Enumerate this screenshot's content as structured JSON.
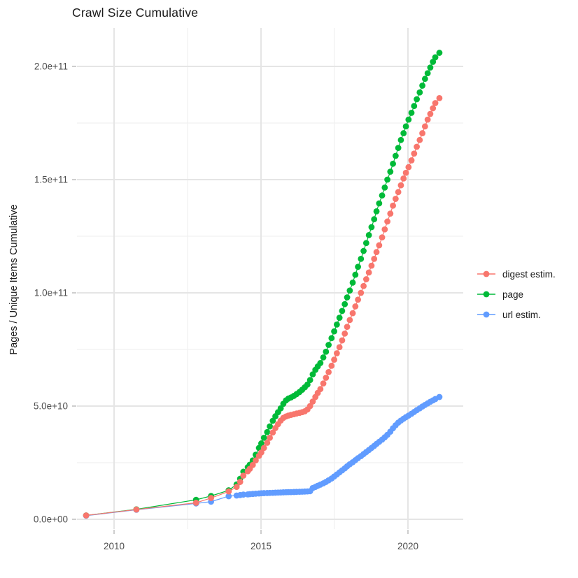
{
  "title": "Crawl Size Cumulative",
  "y_axis_title": "Pages / Unique Items Cumulative",
  "legend": {
    "items": [
      {
        "label": "digest estim.",
        "color": "#F8766D"
      },
      {
        "label": "page",
        "color": "#00BA38"
      },
      {
        "label": "url estim.",
        "color": "#619CFF"
      }
    ]
  },
  "chart_data": {
    "type": "scatter",
    "subtype": "points-with-connecting-lines",
    "title": "Crawl Size Cumulative",
    "xlabel": "",
    "ylabel": "Pages / Unique Items Cumulative",
    "unit": "pages (values in billions, 1e9)",
    "xlim": [
      2008.7,
      2021.9
    ],
    "ylim_e9": [
      -4,
      217
    ],
    "grid": "on",
    "legend_position": "right",
    "axes": {
      "x_major_ticks": [
        {
          "v": 2010,
          "label": "2010"
        },
        {
          "v": 2015,
          "label": "2015"
        },
        {
          "v": 2020,
          "label": "2020"
        }
      ],
      "x_minor_ticks": [
        2012.5,
        2017.5
      ],
      "y_major_ticks_e9": [
        {
          "v": 0,
          "label": "0.0e+00"
        },
        {
          "v": 50,
          "label": "5.0e+10"
        },
        {
          "v": 100,
          "label": "1.0e+11"
        },
        {
          "v": 150,
          "label": "1.5e+11"
        },
        {
          "v": 200,
          "label": "2.0e+11"
        }
      ],
      "y_minor_ticks_e9": [
        25,
        75,
        125,
        175
      ]
    },
    "draw_order": [
      1,
      2,
      0
    ],
    "series": [
      {
        "name": "digest estim.",
        "color": "#F8766D",
        "points": [
          [
            2009.05,
            1.7
          ],
          [
            2010.76,
            4.3
          ],
          [
            2012.79,
            7.3
          ],
          [
            2013.3,
            9.4
          ],
          [
            2013.9,
            12.3
          ],
          [
            2014.17,
            14.3
          ],
          [
            2014.29,
            16.5
          ],
          [
            2014.4,
            19.3
          ],
          [
            2014.55,
            21.2
          ],
          [
            2014.62,
            22.3
          ],
          [
            2014.72,
            24
          ],
          [
            2014.82,
            26
          ],
          [
            2014.93,
            28
          ],
          [
            2015.01,
            29.5
          ],
          [
            2015.1,
            31.5
          ],
          [
            2015.21,
            33.8
          ],
          [
            2015.3,
            36
          ],
          [
            2015.4,
            38.3
          ],
          [
            2015.49,
            40.3
          ],
          [
            2015.58,
            42
          ],
          [
            2015.67,
            43.6
          ],
          [
            2015.76,
            44.8
          ],
          [
            2015.85,
            45.4
          ],
          [
            2015.93,
            45.8
          ],
          [
            2016.02,
            46.1
          ],
          [
            2016.12,
            46.4
          ],
          [
            2016.21,
            46.7
          ],
          [
            2016.31,
            47
          ],
          [
            2016.4,
            47.3
          ],
          [
            2016.49,
            47.7
          ],
          [
            2016.58,
            48.5
          ],
          [
            2016.67,
            50
          ],
          [
            2016.76,
            52
          ],
          [
            2016.85,
            54
          ],
          [
            2016.93,
            55.8
          ],
          [
            2017.02,
            57.5
          ],
          [
            2017.12,
            60
          ],
          [
            2017.21,
            62.5
          ],
          [
            2017.3,
            65
          ],
          [
            2017.4,
            67.8
          ],
          [
            2017.49,
            70.5
          ],
          [
            2017.58,
            73.3
          ],
          [
            2017.67,
            76
          ],
          [
            2017.76,
            79
          ],
          [
            2017.85,
            82
          ],
          [
            2017.93,
            85
          ],
          [
            2018.02,
            88
          ],
          [
            2018.12,
            91
          ],
          [
            2018.21,
            94
          ],
          [
            2018.3,
            97
          ],
          [
            2018.4,
            100
          ],
          [
            2018.49,
            103
          ],
          [
            2018.58,
            106
          ],
          [
            2018.67,
            109
          ],
          [
            2018.76,
            112
          ],
          [
            2018.85,
            115
          ],
          [
            2018.93,
            118
          ],
          [
            2019.02,
            121
          ],
          [
            2019.12,
            124.5
          ],
          [
            2019.21,
            128
          ],
          [
            2019.3,
            131.5
          ],
          [
            2019.4,
            135
          ],
          [
            2019.49,
            138.5
          ],
          [
            2019.58,
            141.5
          ],
          [
            2019.67,
            144.5
          ],
          [
            2019.76,
            147.5
          ],
          [
            2019.85,
            150.5
          ],
          [
            2019.93,
            153
          ],
          [
            2020.02,
            155.5
          ],
          [
            2020.12,
            158.5
          ],
          [
            2020.21,
            161.5
          ],
          [
            2020.3,
            164.5
          ],
          [
            2020.4,
            167.5
          ],
          [
            2020.49,
            170.5
          ],
          [
            2020.58,
            173.5
          ],
          [
            2020.67,
            176.5
          ],
          [
            2020.76,
            179
          ],
          [
            2020.85,
            181.5
          ],
          [
            2020.93,
            183.8
          ],
          [
            2021.07,
            186
          ]
        ]
      },
      {
        "name": "page",
        "color": "#00BA38",
        "points": [
          [
            2009.05,
            1.7
          ],
          [
            2010.76,
            4.4
          ],
          [
            2012.79,
            8.6
          ],
          [
            2013.3,
            10.3
          ],
          [
            2013.9,
            12.8
          ],
          [
            2014.17,
            15.4
          ],
          [
            2014.29,
            17.9
          ],
          [
            2014.4,
            21
          ],
          [
            2014.55,
            23
          ],
          [
            2014.62,
            24.1
          ],
          [
            2014.72,
            26
          ],
          [
            2014.82,
            28.5
          ],
          [
            2014.93,
            31.5
          ],
          [
            2015.01,
            33.5
          ],
          [
            2015.1,
            36
          ],
          [
            2015.21,
            38.5
          ],
          [
            2015.3,
            41
          ],
          [
            2015.4,
            43.5
          ],
          [
            2015.49,
            45.5
          ],
          [
            2015.58,
            47.3
          ],
          [
            2015.67,
            49
          ],
          [
            2015.76,
            51
          ],
          [
            2015.85,
            52.5
          ],
          [
            2015.93,
            53.3
          ],
          [
            2016.02,
            53.8
          ],
          [
            2016.12,
            54.5
          ],
          [
            2016.21,
            55.3
          ],
          [
            2016.31,
            56.2
          ],
          [
            2016.4,
            57.2
          ],
          [
            2016.49,
            58.3
          ],
          [
            2016.58,
            59.5
          ],
          [
            2016.67,
            61.5
          ],
          [
            2016.76,
            64
          ],
          [
            2016.85,
            66
          ],
          [
            2016.93,
            67.5
          ],
          [
            2017.02,
            69
          ],
          [
            2017.12,
            71.5
          ],
          [
            2017.21,
            74
          ],
          [
            2017.3,
            77
          ],
          [
            2017.4,
            80
          ],
          [
            2017.49,
            83
          ],
          [
            2017.58,
            86
          ],
          [
            2017.67,
            89
          ],
          [
            2017.76,
            92
          ],
          [
            2017.85,
            95
          ],
          [
            2017.93,
            98
          ],
          [
            2018.02,
            101
          ],
          [
            2018.12,
            104.5
          ],
          [
            2018.21,
            108
          ],
          [
            2018.3,
            111.5
          ],
          [
            2018.4,
            115
          ],
          [
            2018.49,
            118.5
          ],
          [
            2018.58,
            122
          ],
          [
            2018.67,
            125.5
          ],
          [
            2018.76,
            129
          ],
          [
            2018.85,
            132.5
          ],
          [
            2018.93,
            136
          ],
          [
            2019.02,
            139.5
          ],
          [
            2019.12,
            143
          ],
          [
            2019.21,
            146.5
          ],
          [
            2019.3,
            150
          ],
          [
            2019.4,
            153.5
          ],
          [
            2019.49,
            157
          ],
          [
            2019.58,
            160.5
          ],
          [
            2019.67,
            164
          ],
          [
            2019.76,
            167.5
          ],
          [
            2019.85,
            170.5
          ],
          [
            2019.93,
            173.5
          ],
          [
            2020.02,
            176.5
          ],
          [
            2020.12,
            179.5
          ],
          [
            2020.21,
            182.5
          ],
          [
            2020.3,
            185.5
          ],
          [
            2020.4,
            188.5
          ],
          [
            2020.49,
            191.5
          ],
          [
            2020.58,
            194.5
          ],
          [
            2020.67,
            197
          ],
          [
            2020.76,
            199.5
          ],
          [
            2020.85,
            202
          ],
          [
            2020.93,
            204
          ],
          [
            2021.07,
            206
          ]
        ]
      },
      {
        "name": "url estim.",
        "color": "#619CFF",
        "points": [
          [
            2009.05,
            1.6
          ],
          [
            2010.76,
            4.2
          ],
          [
            2012.79,
            7
          ],
          [
            2013.3,
            7.8
          ],
          [
            2013.9,
            10.2
          ],
          [
            2014.17,
            10.5
          ],
          [
            2014.29,
            10.7
          ],
          [
            2014.4,
            10.9
          ],
          [
            2014.55,
            11
          ],
          [
            2014.62,
            11.1
          ],
          [
            2014.72,
            11.2
          ],
          [
            2014.82,
            11.3
          ],
          [
            2014.93,
            11.4
          ],
          [
            2015.01,
            11.5
          ],
          [
            2015.1,
            11.55
          ],
          [
            2015.21,
            11.6
          ],
          [
            2015.3,
            11.65
          ],
          [
            2015.4,
            11.7
          ],
          [
            2015.49,
            11.75
          ],
          [
            2015.58,
            11.8
          ],
          [
            2015.67,
            11.85
          ],
          [
            2015.76,
            11.9
          ],
          [
            2015.85,
            11.95
          ],
          [
            2015.93,
            12
          ],
          [
            2016.02,
            12
          ],
          [
            2016.12,
            12.05
          ],
          [
            2016.21,
            12.1
          ],
          [
            2016.31,
            12.15
          ],
          [
            2016.4,
            12.2
          ],
          [
            2016.49,
            12.25
          ],
          [
            2016.58,
            12.3
          ],
          [
            2016.67,
            12.4
          ],
          [
            2016.76,
            13.8
          ],
          [
            2016.85,
            14.3
          ],
          [
            2016.93,
            14.8
          ],
          [
            2017.02,
            15.3
          ],
          [
            2017.12,
            15.9
          ],
          [
            2017.21,
            16.5
          ],
          [
            2017.3,
            17.2
          ],
          [
            2017.4,
            18
          ],
          [
            2017.49,
            18.9
          ],
          [
            2017.58,
            19.8
          ],
          [
            2017.67,
            20.7
          ],
          [
            2017.76,
            21.6
          ],
          [
            2017.85,
            22.5
          ],
          [
            2017.93,
            23.4
          ],
          [
            2018.02,
            24.3
          ],
          [
            2018.12,
            25.2
          ],
          [
            2018.21,
            26.1
          ],
          [
            2018.3,
            27
          ],
          [
            2018.4,
            27.9
          ],
          [
            2018.49,
            28.8
          ],
          [
            2018.58,
            29.7
          ],
          [
            2018.67,
            30.6
          ],
          [
            2018.76,
            31.5
          ],
          [
            2018.85,
            32.4
          ],
          [
            2018.93,
            33.3
          ],
          [
            2019.02,
            34.2
          ],
          [
            2019.12,
            35.2
          ],
          [
            2019.21,
            36.2
          ],
          [
            2019.3,
            37.3
          ],
          [
            2019.4,
            38.7
          ],
          [
            2019.49,
            40.2
          ],
          [
            2019.58,
            41.5
          ],
          [
            2019.67,
            42.7
          ],
          [
            2019.76,
            43.6
          ],
          [
            2019.85,
            44.4
          ],
          [
            2019.93,
            45.1
          ],
          [
            2020.02,
            45.8
          ],
          [
            2020.12,
            46.6
          ],
          [
            2020.21,
            47.4
          ],
          [
            2020.3,
            48.2
          ],
          [
            2020.4,
            49
          ],
          [
            2020.49,
            49.8
          ],
          [
            2020.58,
            50.5
          ],
          [
            2020.67,
            51.2
          ],
          [
            2020.76,
            51.9
          ],
          [
            2020.85,
            52.5
          ],
          [
            2020.93,
            53.1
          ],
          [
            2021.07,
            54
          ]
        ]
      }
    ],
    "style": {
      "grid_major_color": "#E5E5E5",
      "grid_minor_color": "#F0F0F0",
      "tick_color": "#BEBEBE",
      "tick_label_color": "#4D4D4D",
      "background": "#FFFFFF"
    }
  }
}
